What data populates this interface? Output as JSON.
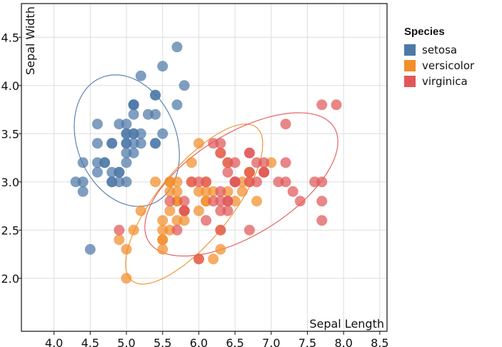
{
  "chart_data": {
    "type": "scatter",
    "xlabel": "Sepal Length",
    "ylabel": "Sepal Width",
    "xlim": [
      3.55,
      8.6
    ],
    "ylim": [
      1.45,
      4.85
    ],
    "x_ticks": [
      "4.0",
      "4.5",
      "5.0",
      "5.5",
      "6.0",
      "6.5",
      "7.0",
      "7.5",
      "8.0",
      "8.5"
    ],
    "y_ticks": [
      "2.0",
      "2.5",
      "3.0",
      "3.5",
      "4.0",
      "4.5"
    ],
    "grid": true,
    "legend": {
      "title": "Species",
      "placement": "right"
    },
    "series": [
      {
        "name": "setosa",
        "color": "#4e79a7",
        "points": [
          [
            5.1,
            3.5
          ],
          [
            4.9,
            3.0
          ],
          [
            4.7,
            3.2
          ],
          [
            4.6,
            3.1
          ],
          [
            5.0,
            3.6
          ],
          [
            5.4,
            3.9
          ],
          [
            4.6,
            3.4
          ],
          [
            5.0,
            3.4
          ],
          [
            4.4,
            2.9
          ],
          [
            4.9,
            3.1
          ],
          [
            5.4,
            3.7
          ],
          [
            4.8,
            3.4
          ],
          [
            4.8,
            3.0
          ],
          [
            4.3,
            3.0
          ],
          [
            5.8,
            4.0
          ],
          [
            5.7,
            4.4
          ],
          [
            5.4,
            3.9
          ],
          [
            5.1,
            3.5
          ],
          [
            5.7,
            3.8
          ],
          [
            5.1,
            3.8
          ],
          [
            5.4,
            3.4
          ],
          [
            5.1,
            3.7
          ],
          [
            4.6,
            3.6
          ],
          [
            5.1,
            3.3
          ],
          [
            4.8,
            3.4
          ],
          [
            5.0,
            3.0
          ],
          [
            5.0,
            3.4
          ],
          [
            5.2,
            3.5
          ],
          [
            5.2,
            3.4
          ],
          [
            4.7,
            3.2
          ],
          [
            4.8,
            3.1
          ],
          [
            5.4,
            3.4
          ],
          [
            5.2,
            4.1
          ],
          [
            5.5,
            4.2
          ],
          [
            4.9,
            3.1
          ],
          [
            5.0,
            3.2
          ],
          [
            5.5,
            3.5
          ],
          [
            4.9,
            3.6
          ],
          [
            4.4,
            3.0
          ],
          [
            5.1,
            3.4
          ],
          [
            5.0,
            3.5
          ],
          [
            4.5,
            2.3
          ],
          [
            4.4,
            3.2
          ],
          [
            5.0,
            3.5
          ],
          [
            5.1,
            3.8
          ],
          [
            4.8,
            3.0
          ],
          [
            5.1,
            3.8
          ],
          [
            4.6,
            3.2
          ],
          [
            5.3,
            3.7
          ],
          [
            5.0,
            3.3
          ]
        ]
      },
      {
        "name": "versicolor",
        "color": "#f28e2b",
        "points": [
          [
            7.0,
            3.2
          ],
          [
            6.4,
            3.2
          ],
          [
            6.9,
            3.1
          ],
          [
            5.5,
            2.3
          ],
          [
            6.5,
            2.8
          ],
          [
            5.7,
            2.8
          ],
          [
            6.3,
            3.3
          ],
          [
            4.9,
            2.4
          ],
          [
            6.6,
            2.9
          ],
          [
            5.2,
            2.7
          ],
          [
            5.0,
            2.0
          ],
          [
            5.9,
            3.0
          ],
          [
            6.0,
            2.2
          ],
          [
            6.1,
            2.9
          ],
          [
            5.6,
            2.9
          ],
          [
            6.7,
            3.1
          ],
          [
            5.6,
            3.0
          ],
          [
            5.8,
            2.7
          ],
          [
            6.2,
            2.2
          ],
          [
            5.6,
            2.5
          ],
          [
            5.9,
            3.2
          ],
          [
            6.1,
            2.8
          ],
          [
            6.3,
            2.5
          ],
          [
            6.1,
            2.8
          ],
          [
            6.4,
            2.9
          ],
          [
            6.6,
            3.0
          ],
          [
            6.8,
            2.8
          ],
          [
            6.7,
            3.0
          ],
          [
            6.0,
            2.9
          ],
          [
            5.7,
            2.6
          ],
          [
            5.5,
            2.4
          ],
          [
            5.5,
            2.4
          ],
          [
            5.8,
            2.7
          ],
          [
            6.0,
            2.7
          ],
          [
            5.4,
            3.0
          ],
          [
            6.0,
            3.4
          ],
          [
            6.7,
            3.1
          ],
          [
            6.3,
            2.3
          ],
          [
            5.6,
            3.0
          ],
          [
            5.5,
            2.5
          ],
          [
            5.5,
            2.6
          ],
          [
            6.1,
            3.0
          ],
          [
            5.8,
            2.6
          ],
          [
            5.0,
            2.3
          ],
          [
            5.6,
            2.7
          ],
          [
            5.7,
            3.0
          ],
          [
            5.7,
            2.9
          ],
          [
            6.2,
            2.9
          ],
          [
            5.1,
            2.5
          ],
          [
            5.7,
            2.8
          ]
        ]
      },
      {
        "name": "virginica",
        "color": "#e15759",
        "points": [
          [
            6.3,
            3.3
          ],
          [
            5.8,
            2.7
          ],
          [
            7.1,
            3.0
          ],
          [
            6.3,
            2.9
          ],
          [
            6.5,
            3.0
          ],
          [
            7.6,
            3.0
          ],
          [
            4.9,
            2.5
          ],
          [
            7.3,
            2.9
          ],
          [
            6.7,
            2.5
          ],
          [
            7.2,
            3.6
          ],
          [
            6.5,
            3.2
          ],
          [
            6.4,
            2.7
          ],
          [
            6.8,
            3.0
          ],
          [
            5.7,
            2.5
          ],
          [
            5.8,
            2.8
          ],
          [
            6.4,
            3.2
          ],
          [
            6.5,
            3.0
          ],
          [
            7.7,
            3.8
          ],
          [
            7.7,
            2.6
          ],
          [
            6.0,
            2.2
          ],
          [
            6.9,
            3.2
          ],
          [
            5.6,
            2.8
          ],
          [
            7.7,
            2.8
          ],
          [
            6.3,
            2.7
          ],
          [
            6.7,
            3.3
          ],
          [
            7.2,
            3.2
          ],
          [
            6.2,
            2.8
          ],
          [
            6.1,
            3.0
          ],
          [
            6.4,
            2.8
          ],
          [
            7.2,
            3.0
          ],
          [
            7.4,
            2.8
          ],
          [
            7.9,
            3.8
          ],
          [
            6.4,
            2.8
          ],
          [
            6.3,
            2.8
          ],
          [
            6.1,
            2.6
          ],
          [
            7.7,
            3.0
          ],
          [
            6.3,
            3.4
          ],
          [
            6.4,
            3.1
          ],
          [
            6.0,
            3.0
          ],
          [
            6.9,
            3.1
          ],
          [
            6.7,
            3.1
          ],
          [
            6.9,
            3.1
          ],
          [
            5.8,
            2.7
          ],
          [
            6.8,
            3.2
          ],
          [
            6.7,
            3.3
          ],
          [
            6.7,
            3.0
          ],
          [
            6.3,
            2.5
          ],
          [
            6.5,
            3.0
          ],
          [
            6.2,
            3.4
          ],
          [
            5.9,
            3.0
          ]
        ]
      }
    ],
    "ellipses": [
      {
        "series": "setosa",
        "center": [
          5.006,
          3.428
        ],
        "rx_data": 0.62,
        "ry_data": 0.78,
        "angle_deg": 53
      },
      {
        "series": "versicolor",
        "center": [
          5.936,
          2.77
        ],
        "rx_data": 1.18,
        "ry_data": 0.44,
        "angle_deg": 40
      },
      {
        "series": "virginica",
        "center": [
          6.588,
          2.974
        ],
        "rx_data": 1.42,
        "ry_data": 0.56,
        "angle_deg": 22
      }
    ]
  }
}
